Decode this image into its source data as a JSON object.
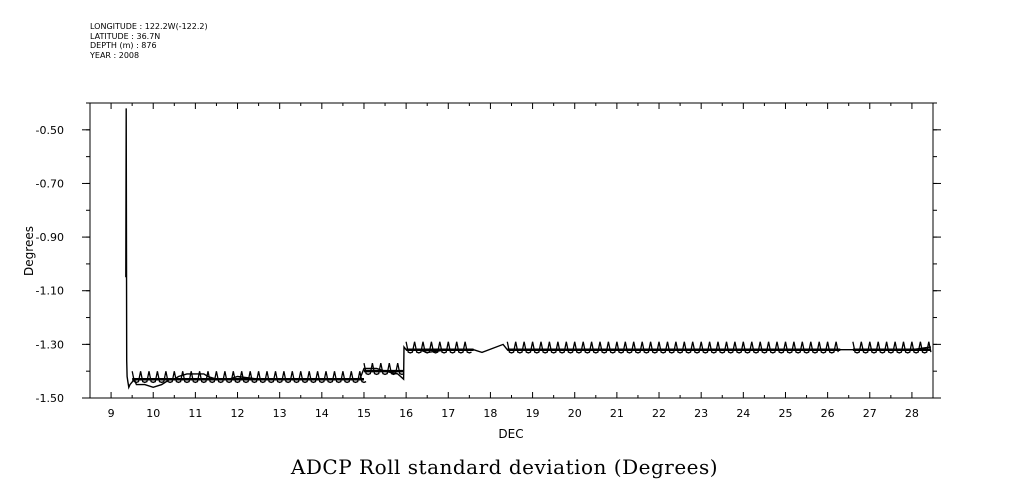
{
  "header": {
    "lines": [
      "LONGITUDE : 122.2W(-122.2)",
      "LATITUDE : 36.7N",
      "DEPTH (m) : 876",
      "YEAR : 2008"
    ]
  },
  "chart_data": {
    "type": "line",
    "title": "ADCP Roll standard deviation (Degrees)",
    "xlabel": "DEC",
    "ylabel": "Degrees",
    "xlim": [
      8.5,
      28.5
    ],
    "ylim": [
      -1.5,
      -0.4
    ],
    "x_ticks": [
      9,
      10,
      11,
      12,
      13,
      14,
      15,
      16,
      17,
      18,
      19,
      20,
      21,
      22,
      23,
      24,
      25,
      26,
      27,
      28
    ],
    "y_ticks": [
      -0.5,
      -0.7,
      -0.9,
      -1.1,
      -1.3,
      -1.5
    ],
    "y_tick_labels": [
      "-0.50",
      "-0.70",
      "-0.90",
      "-1.10",
      "-1.30",
      "-1.50"
    ],
    "grid": false,
    "series": [
      {
        "color": "#000000",
        "x": [
          9.35,
          9.36,
          9.37,
          9.38,
          9.4,
          9.42,
          9.45,
          9.5,
          9.55,
          9.6,
          9.7,
          9.8,
          10.0,
          10.2,
          10.3,
          10.4,
          10.5,
          10.6,
          10.8,
          11.0,
          11.2,
          11.3,
          11.5,
          11.8,
          12.0,
          12.5,
          13.0,
          13.5,
          14.0,
          14.5,
          14.9,
          15.0,
          15.3,
          15.5,
          15.8,
          15.94,
          15.95,
          16.0,
          16.3,
          16.5,
          17.0,
          17.5,
          17.6,
          17.8,
          18.3,
          18.4,
          18.6,
          19.0,
          20.0,
          21.0,
          22.0,
          23.0,
          24.0,
          25.0,
          26.0,
          26.3,
          26.5,
          26.6,
          27.0,
          28.0,
          28.45
        ],
        "y": [
          -1.05,
          -0.42,
          -1.36,
          -1.42,
          -1.44,
          -1.46,
          -1.45,
          -1.44,
          -1.43,
          -1.45,
          -1.45,
          -1.45,
          -1.46,
          -1.45,
          -1.44,
          -1.43,
          -1.43,
          -1.42,
          -1.41,
          -1.41,
          -1.41,
          -1.42,
          -1.43,
          -1.43,
          -1.42,
          -1.43,
          -1.43,
          -1.43,
          -1.43,
          -1.43,
          -1.43,
          -1.39,
          -1.39,
          -1.4,
          -1.41,
          -1.43,
          -1.31,
          -1.32,
          -1.32,
          -1.33,
          -1.32,
          -1.32,
          -1.32,
          -1.33,
          -1.3,
          -1.32,
          -1.32,
          -1.32,
          -1.32,
          -1.32,
          -1.32,
          -1.32,
          -1.32,
          -1.32,
          -1.32,
          -1.32,
          -1.32,
          -1.32,
          -1.32,
          -1.32,
          -1.31
        ]
      }
    ],
    "notes_bands": [
      {
        "x": [
          9.5,
          15.0
        ],
        "base": -1.43,
        "amp": 0.03
      },
      {
        "x": [
          15.0,
          15.95
        ],
        "base": -1.4,
        "amp": 0.03
      },
      {
        "x": [
          16.0,
          17.6
        ],
        "base": -1.32,
        "amp": 0.03
      },
      {
        "x": [
          18.4,
          26.3
        ],
        "base": -1.32,
        "amp": 0.03
      },
      {
        "x": [
          26.6,
          28.45
        ],
        "base": -1.32,
        "amp": 0.03
      }
    ]
  }
}
